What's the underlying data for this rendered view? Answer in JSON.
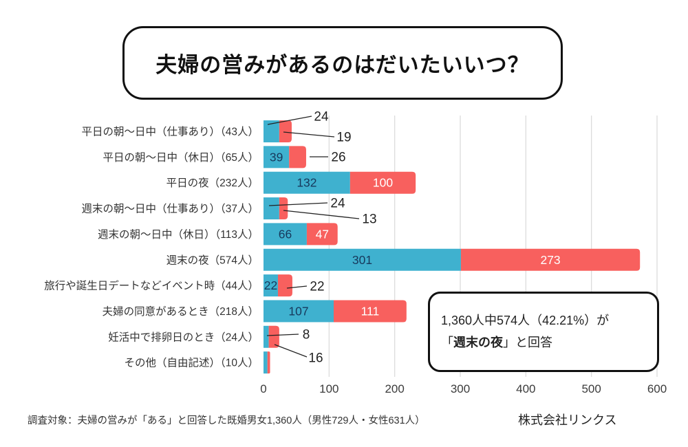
{
  "title": "夫婦の営みがあるのはだいたいいつ？",
  "colors": {
    "blue": "#3FB1CF",
    "red": "#F8605E",
    "blue_label": "#17395C",
    "red_label": "#FFFFFF",
    "grid": "#DCDCDC",
    "text": "#333333",
    "leader": "#222222",
    "tick": "#3B3B3B"
  },
  "chart_data": {
    "type": "bar",
    "orientation": "horizontal",
    "stacked": true,
    "title": "",
    "xlabel": "",
    "ylabel": "",
    "categories": [
      "平日の朝～日中（仕事あり）（43人）",
      "平日の朝～日中（休日）（65人）",
      "平日の夜（232人）",
      "週末の朝～日中（仕事あり）（37人）",
      "週末の朝～日中（休日）（113人）",
      "週末の夜（574人）",
      "旅行や誕生日デートなどイベント時（44人）",
      "夫婦の同意があるとき（218人）",
      "妊活中で排卵日のとき（24人）",
      "その他（自由記述）（10人）"
    ],
    "series": [
      {
        "key": "blue",
        "values": [
          24,
          39,
          132,
          24,
          66,
          301,
          22,
          107,
          8,
          6
        ]
      },
      {
        "key": "red",
        "values": [
          19,
          26,
          100,
          13,
          47,
          273,
          22,
          111,
          16,
          4
        ]
      }
    ],
    "totals": [
      43,
      65,
      232,
      37,
      113,
      574,
      44,
      218,
      24,
      10
    ],
    "xlim": [
      0,
      600
    ],
    "xticks": [
      0,
      100,
      200,
      300,
      400,
      500,
      600
    ],
    "grid": true,
    "legend": "none",
    "value_label_modes": {
      "blue": [
        "leader",
        "in",
        "in",
        "leader",
        "in",
        "in",
        "in",
        "in",
        "leader",
        "none"
      ],
      "red": [
        "leader",
        "leader",
        "in",
        "leader",
        "in",
        "in",
        "leader",
        "in",
        "leader",
        "none"
      ]
    }
  },
  "annotation": {
    "line1": "1,360人中574人（42.21%）が",
    "line2_prefix": "「",
    "line2_bold": "週末の夜",
    "line2_suffix": "」と回答"
  },
  "footer": {
    "survey_note": "調査対象：夫婦の営みが「ある」と回答した既婚男女1,360人（男性729人・女性631人）",
    "company": "株式会社リンクス"
  }
}
